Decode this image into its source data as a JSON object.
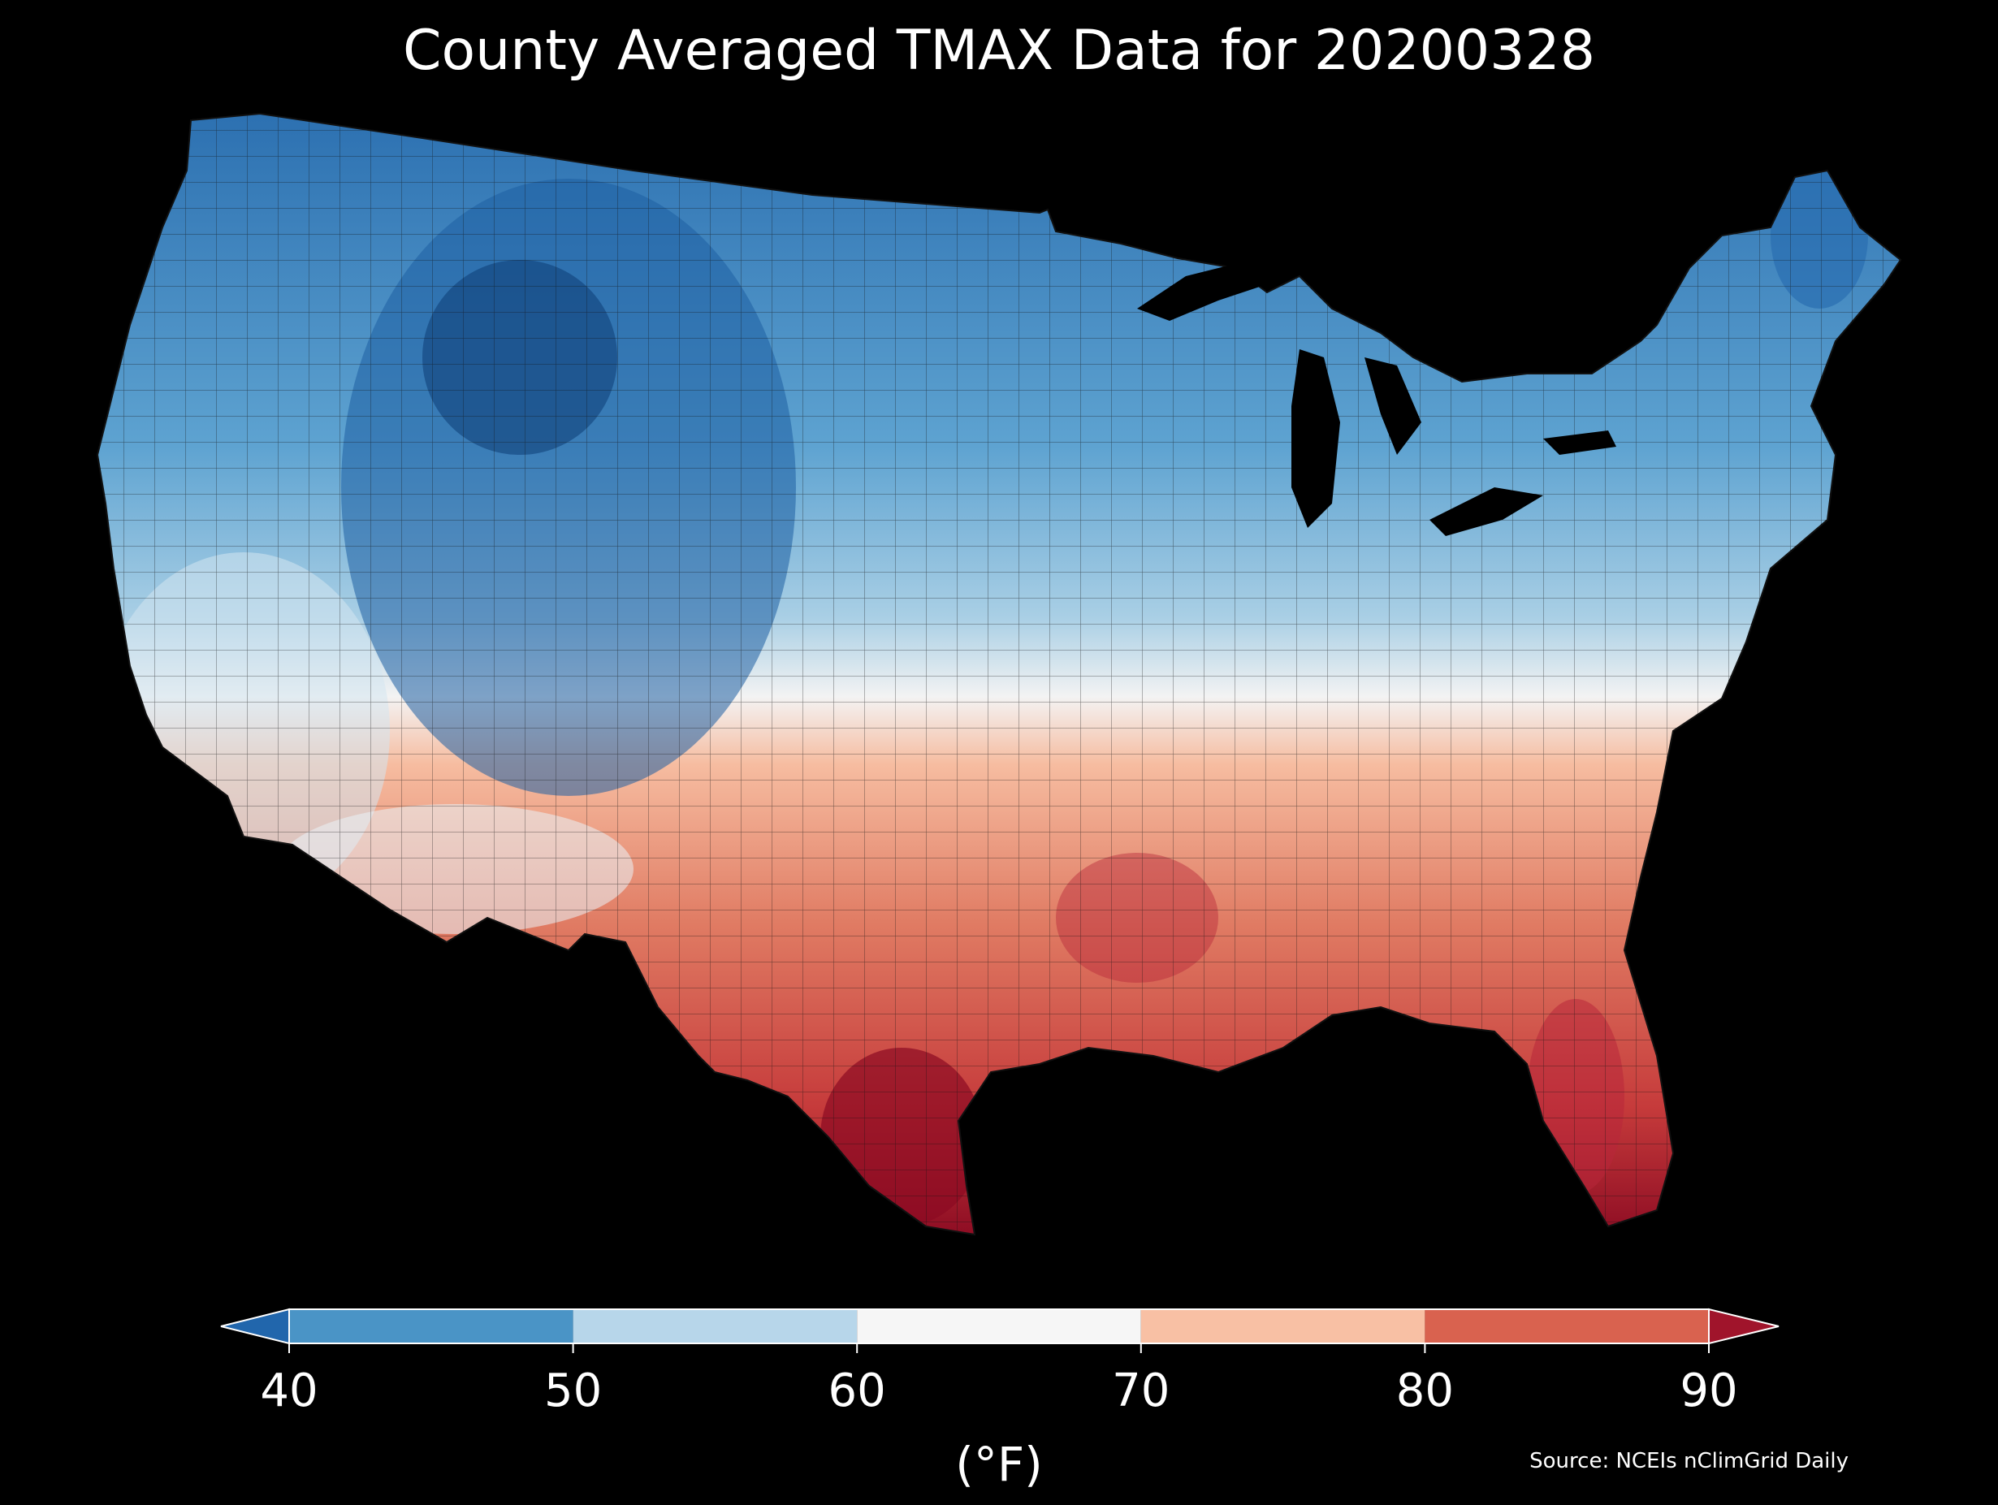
{
  "title": "County Averaged TMAX Data for 20200328",
  "source": "Source: NCEIs nClimGrid Daily",
  "colorbar": {
    "unit_label": "(°F)",
    "ticks": [
      40,
      50,
      60,
      70,
      80,
      90
    ],
    "tick_labels": [
      "40",
      "50",
      "60",
      "70",
      "80",
      "90"
    ],
    "bins": [
      {
        "min": 40,
        "max": 50,
        "color": "#4a94c6"
      },
      {
        "min": 50,
        "max": 60,
        "color": "#b7d6ea"
      },
      {
        "min": 60,
        "max": 70,
        "color": "#f6f6f6"
      },
      {
        "min": 70,
        "max": 80,
        "color": "#f8c0a4"
      },
      {
        "min": 80,
        "max": 90,
        "color": "#d9624f"
      }
    ],
    "under_color": "#2166ac",
    "over_color": "#a0142b",
    "extend": "both"
  },
  "colors": {
    "background": "#000000",
    "county_border": "#111111"
  }
}
